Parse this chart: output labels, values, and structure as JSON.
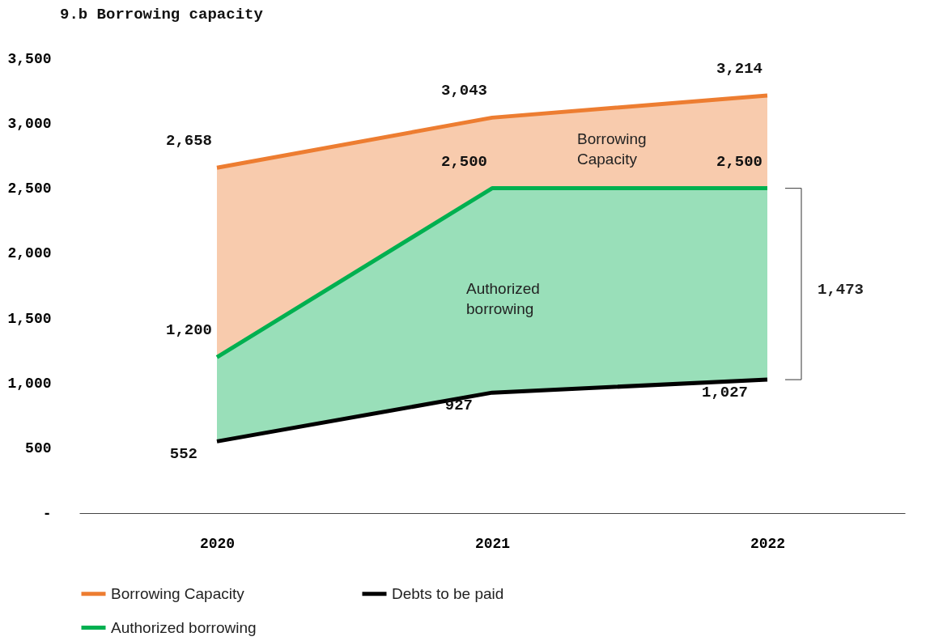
{
  "chart_data": {
    "type": "line",
    "title": "9.b Borrowing capacity",
    "categories": [
      "2020",
      "2021",
      "2022"
    ],
    "series": [
      {
        "name": "Borrowing Capacity",
        "color": "#ed7d31",
        "values": [
          2658,
          3043,
          3214
        ],
        "value_labels": [
          "2,658",
          "3,043",
          "3,214"
        ],
        "lower": [
          1200,
          2500,
          2500
        ],
        "upper": [
          2658,
          3043,
          3214
        ]
      },
      {
        "name": "Debts to be paid",
        "color": "#000000",
        "values": [
          552,
          927,
          1027
        ],
        "value_labels": [
          "552",
          "927",
          "1,027"
        ]
      },
      {
        "name": "Authorized borrowing",
        "color": "#00b050",
        "values": [
          1200,
          2500,
          2500
        ],
        "value_labels": [
          "1,200",
          "2,500",
          "2,500"
        ],
        "lower": [
          552,
          927,
          1027
        ],
        "upper": [
          1200,
          2500,
          2500
        ]
      }
    ],
    "ylim": [
      0,
      3500
    ],
    "yticks": [
      {
        "value": 0,
        "label": "-"
      },
      500,
      {
        "value": 1000,
        "label": "1,000"
      },
      {
        "value": 1500,
        "label": "1,500"
      },
      {
        "value": 2000,
        "label": "2,000"
      },
      {
        "value": 2500,
        "label": "2,500"
      },
      {
        "value": 3000,
        "label": "3,000"
      },
      {
        "value": 3500,
        "label": "3,500"
      }
    ],
    "grid": false,
    "legend": "bottom",
    "marker": "none",
    "line_style": "solid",
    "annotations": [
      "Borrowing Capacity",
      "Authorized borrowing",
      "1,473"
    ]
  }
}
